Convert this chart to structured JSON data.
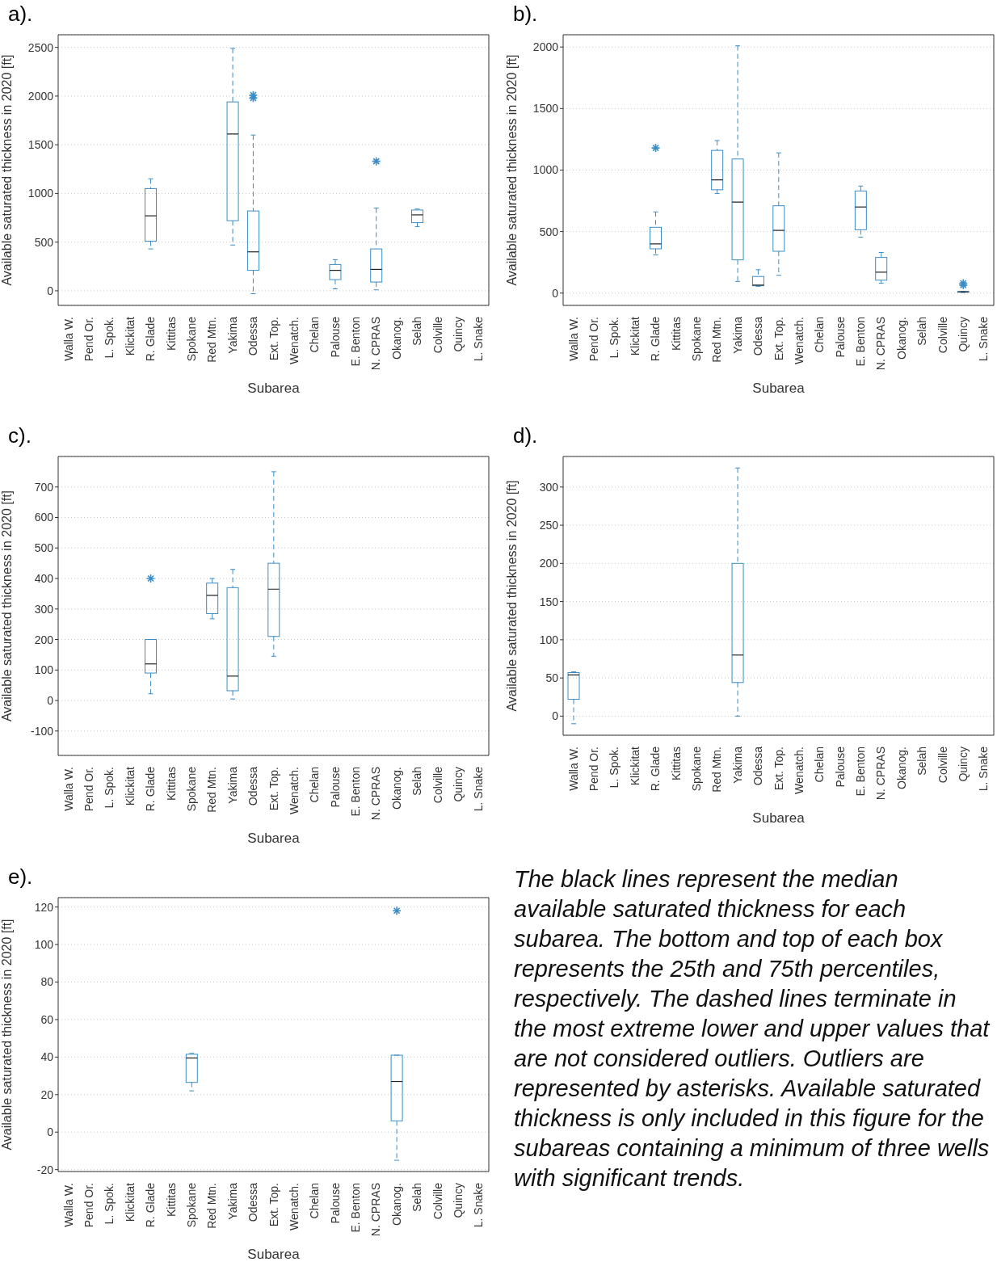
{
  "chart_data": [
    {
      "type": "box",
      "title": "a).",
      "xlabel": "Subarea",
      "ylabel": "Available saturated thickness in 2020 [ft]",
      "color": "#3a8dc6",
      "line_style": "dashed",
      "marker": "star",
      "grid": "y",
      "categories": [
        "Walla W.",
        "Pend Or.",
        "L. Spok.",
        "Klickitat",
        "R. Glade",
        "Kittitas",
        "Spokane",
        "Red Mtn.",
        "Yakima",
        "Odessa",
        "Ext. Top.",
        "Wenatch.",
        "Chelan",
        "Palouse",
        "E. Benton",
        "N. CPRAS",
        "Okanog.",
        "Selah",
        "Colville",
        "Quincy",
        "L. Snake"
      ],
      "boxes": [
        null,
        null,
        null,
        null,
        {
          "low": 430,
          "q1": 510,
          "median": 770,
          "q3": 1050,
          "high": 1150
        },
        null,
        null,
        null,
        {
          "low": 470,
          "q1": 720,
          "median": 1610,
          "q3": 1940,
          "high": 2490
        },
        {
          "low": -30,
          "q1": 210,
          "median": 400,
          "q3": 820,
          "high": 1600,
          "outliers": [
            1980,
            2010
          ]
        },
        null,
        null,
        null,
        {
          "low": 20,
          "q1": 115,
          "median": 210,
          "q3": 270,
          "high": 320
        },
        null,
        {
          "low": 10,
          "q1": 90,
          "median": 220,
          "q3": 430,
          "high": 850,
          "outliers": [
            1330
          ]
        },
        null,
        {
          "low": 660,
          "q1": 700,
          "median": 780,
          "q3": 830,
          "high": 840
        },
        null,
        null,
        null
      ],
      "ylim": [
        -150,
        2630
      ],
      "yticks": [
        0,
        500,
        1000,
        1500,
        2000,
        2500
      ]
    },
    {
      "type": "box",
      "title": "b).",
      "xlabel": "Subarea",
      "ylabel": "Available saturated thickness in 2020 [ft]",
      "color": "#3a8dc6",
      "line_style": "dashed",
      "marker": "star",
      "grid": "y",
      "categories": [
        "Walla W.",
        "Pend Or.",
        "L. Spok.",
        "Klickitat",
        "R. Glade",
        "Kittitas",
        "Spokane",
        "Red Mtn.",
        "Yakima",
        "Odessa",
        "Ext. Top.",
        "Wenatch.",
        "Chelan",
        "Palouse",
        "E. Benton",
        "N. CPRAS",
        "Okanog.",
        "Selah",
        "Colville",
        "Quincy",
        "L. Snake"
      ],
      "boxes": [
        null,
        null,
        null,
        null,
        {
          "low": 310,
          "q1": 360,
          "median": 400,
          "q3": 535,
          "high": 660,
          "outliers": [
            1180
          ]
        },
        null,
        null,
        {
          "low": 810,
          "q1": 840,
          "median": 920,
          "q3": 1160,
          "high": 1240
        },
        {
          "low": 95,
          "q1": 270,
          "median": 740,
          "q3": 1090,
          "high": 2010
        },
        {
          "low": 55,
          "q1": 60,
          "median": 65,
          "q3": 135,
          "high": 190
        },
        {
          "low": 145,
          "q1": 340,
          "median": 510,
          "q3": 710,
          "high": 1140
        },
        null,
        null,
        null,
        {
          "low": 455,
          "q1": 515,
          "median": 700,
          "q3": 830,
          "high": 870
        },
        {
          "low": 80,
          "q1": 105,
          "median": 170,
          "q3": 290,
          "high": 330
        },
        null,
        null,
        null,
        {
          "low": 5,
          "q1": 8,
          "median": 10,
          "q3": 12,
          "high": 15,
          "outliers": [
            65,
            80
          ]
        },
        null
      ],
      "ylim": [
        -100,
        2100
      ],
      "yticks": [
        0,
        500,
        1000,
        1500,
        2000
      ]
    },
    {
      "type": "box",
      "title": "c).",
      "xlabel": "Subarea",
      "ylabel": "Available saturated thickness in 2020 [ft]",
      "color": "#3a8dc6",
      "line_style": "dashed",
      "marker": "star",
      "grid": "y",
      "categories": [
        "Walla W.",
        "Pend Or.",
        "L. Spok.",
        "Klickitat",
        "R. Glade",
        "Kittitas",
        "Spokane",
        "Red Mtn.",
        "Yakima",
        "Odessa",
        "Ext. Top.",
        "Wenatch.",
        "Chelan",
        "Palouse",
        "E. Benton",
        "N. CPRAS",
        "Okanog.",
        "Selah",
        "Colville",
        "Quincy",
        "L. Snake"
      ],
      "boxes": [
        null,
        null,
        null,
        null,
        {
          "low": 22,
          "q1": 90,
          "median": 120,
          "q3": 200,
          "high": 200,
          "outliers": [
            400
          ]
        },
        null,
        null,
        {
          "low": 268,
          "q1": 285,
          "median": 345,
          "q3": 385,
          "high": 400
        },
        {
          "low": 5,
          "q1": 32,
          "median": 80,
          "q3": 370,
          "high": 430
        },
        null,
        {
          "low": 145,
          "q1": 210,
          "median": 365,
          "q3": 450,
          "high": 750
        },
        null,
        null,
        null,
        null,
        null,
        null,
        null,
        null,
        null,
        null
      ],
      "ylim": [
        -180,
        800
      ],
      "yticks": [
        -100,
        0,
        100,
        200,
        300,
        400,
        500,
        600,
        700
      ]
    },
    {
      "type": "box",
      "title": "d).",
      "xlabel": "Subarea",
      "ylabel": "Available saturated thickness in 2020 [ft]",
      "color": "#3a8dc6",
      "line_style": "dashed",
      "grid": "y",
      "categories": [
        "Walla W.",
        "Pend Or.",
        "L. Spok.",
        "Klickitat",
        "R. Glade",
        "Kittitas",
        "Spokane",
        "Red Mtn.",
        "Yakima",
        "Odessa",
        "Ext. Top.",
        "Wenatch.",
        "Chelan",
        "Palouse",
        "E. Benton",
        "N. CPRAS",
        "Okanog.",
        "Selah",
        "Colville",
        "Quincy",
        "L. Snake"
      ],
      "boxes": [
        {
          "low": -10,
          "q1": 22,
          "median": 54,
          "q3": 57,
          "high": 58
        },
        null,
        null,
        null,
        null,
        null,
        null,
        null,
        {
          "low": 0,
          "q1": 44,
          "median": 80,
          "q3": 200,
          "high": 325
        },
        null,
        null,
        null,
        null,
        null,
        null,
        null,
        null,
        null,
        null,
        null,
        null
      ],
      "ylim": [
        -25,
        340
      ],
      "yticks": [
        0,
        50,
        100,
        150,
        200,
        250,
        300
      ]
    },
    {
      "type": "box",
      "title": "e).",
      "xlabel": "Subarea",
      "ylabel": "Available saturated thickness in 2020 [ft]",
      "color": "#3a8dc6",
      "line_style": "dashed",
      "marker": "star",
      "grid": "y",
      "categories": [
        "Walla W.",
        "Pend Or.",
        "L. Spok.",
        "Klickitat",
        "R. Glade",
        "Kittitas",
        "Spokane",
        "Red Mtn.",
        "Yakima",
        "Odessa",
        "Ext. Top.",
        "Wenatch.",
        "Chelan",
        "Palouse",
        "E. Benton",
        "N. CPRAS",
        "Okanog.",
        "Selah",
        "Colville",
        "Quincy",
        "L. Snake"
      ],
      "boxes": [
        null,
        null,
        null,
        null,
        null,
        null,
        {
          "low": 22,
          "q1": 26.5,
          "median": 39.5,
          "q3": 41.5,
          "high": 42
        },
        null,
        null,
        null,
        null,
        null,
        null,
        null,
        null,
        null,
        {
          "low": -15,
          "q1": 6,
          "median": 27,
          "q3": 41,
          "high": 41,
          "outliers": [
            118
          ]
        },
        null,
        null,
        null,
        null
      ],
      "ylim": [
        -21,
        125
      ],
      "yticks": [
        -20,
        0,
        20,
        40,
        60,
        80,
        100,
        120
      ],
      "annotations": [
        "The black lines represent the median available saturated thickness for each subarea. The bottom and top of each box represents the 25th and 75th percentiles, respectively. The dashed lines terminate in the most extreme lower and upper values that are not considered outliers. Outliers are represented by asterisks. Available saturated thickness is only included in this figure for the subareas containing a minimum of three wells with significant trends."
      ]
    }
  ]
}
